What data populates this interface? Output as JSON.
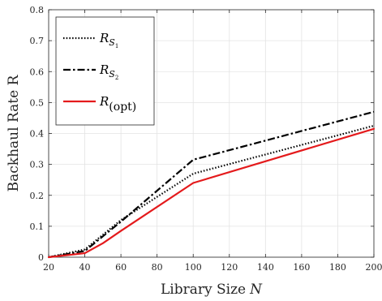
{
  "chart_data": {
    "type": "line",
    "xlabel": "Library Size",
    "xlabel_var": "N",
    "ylabel": "Backhaul Rate R",
    "xlim": [
      20,
      200
    ],
    "ylim": [
      0,
      0.8
    ],
    "xticks": [
      20,
      40,
      60,
      80,
      100,
      120,
      140,
      160,
      180,
      200
    ],
    "yticks": [
      0,
      0.1,
      0.2,
      0.3,
      0.4,
      0.5,
      0.6,
      0.7,
      0.8
    ],
    "grid": true,
    "legend_position": "top-left",
    "series": [
      {
        "name": "R_S1",
        "legend_main": "R",
        "legend_sub": "S",
        "legend_subsub": "1",
        "style": "dotted",
        "color": "#000000",
        "x": [
          20,
          40,
          60,
          100,
          200
        ],
        "y": [
          0,
          0.025,
          0.12,
          0.27,
          0.425
        ]
      },
      {
        "name": "R_S2",
        "legend_main": "R",
        "legend_sub": "S",
        "legend_subsub": "2",
        "style": "dashdot",
        "color": "#000000",
        "x": [
          20,
          40,
          60,
          100,
          200
        ],
        "y": [
          0,
          0.02,
          0.115,
          0.315,
          0.47
        ]
      },
      {
        "name": "R_(opt)",
        "legend_main": "R",
        "legend_sub": "(opt)",
        "legend_subsub": "",
        "style": "solid",
        "color": "#e41a1c",
        "x": [
          20,
          40,
          50,
          60,
          100,
          200
        ],
        "y": [
          0,
          0.013,
          0.045,
          0.085,
          0.24,
          0.415
        ]
      }
    ]
  }
}
